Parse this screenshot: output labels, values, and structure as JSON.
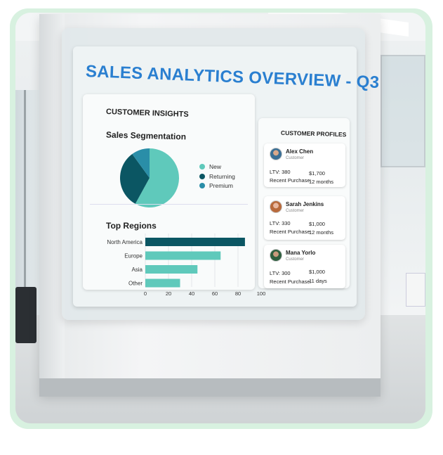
{
  "dashboard": {
    "title": "SALES ANALYTICS OVERVIEW - Q3",
    "customer_insights": {
      "heading": "CUSTOMER INSIGHTS",
      "segmentation_title": "Sales Segmentation",
      "legend": [
        {
          "label": "New",
          "color": "#5fc9bb"
        },
        {
          "label": "Returning",
          "color": "#0b5663"
        },
        {
          "label": "Premium",
          "color": "#2a8ea8"
        }
      ],
      "regions_title": "Top Regions"
    },
    "customer_profiles": {
      "heading": "CUSTOMER PROFILES",
      "cards": [
        {
          "name": "Alex Chen",
          "role": "Customer",
          "ltv": "LTV: 380",
          "amount": "$1,700",
          "recent_label": "Recent Purchase:",
          "recent": "12 months"
        },
        {
          "name": "Sarah Jenkins",
          "role": "Customer",
          "ltv": "LTV: 330",
          "amount": "$1,000",
          "recent_label": "Recent Purchase:",
          "recent": "12 months"
        },
        {
          "name": "Mana Yorlo",
          "role": "Customer",
          "ltv": "LTV: 300",
          "amount": "$1,000",
          "recent_label": "Recent Purchase:",
          "recent": "11 days"
        }
      ]
    }
  },
  "chart_data": [
    {
      "type": "pie",
      "title": "Sales Segmentation",
      "categories": [
        "New",
        "Returning",
        "Premium"
      ],
      "values": [
        58,
        32,
        10
      ],
      "colors": [
        "#5fc9bb",
        "#0b5663",
        "#2a8ea8"
      ],
      "legend": "right"
    },
    {
      "type": "bar",
      "orientation": "horizontal",
      "title": "Top Regions",
      "categories": [
        "North America",
        "Europe",
        "Asia",
        "Other"
      ],
      "values": [
        86,
        65,
        45,
        30
      ],
      "colors": [
        "#0b5663",
        "#5fc9bb",
        "#5fc9bb",
        "#5fc9bb"
      ],
      "xlim": [
        0,
        100
      ],
      "xticks": [
        "0",
        "20",
        "40",
        "60",
        "80",
        "100"
      ],
      "grid": true
    }
  ]
}
